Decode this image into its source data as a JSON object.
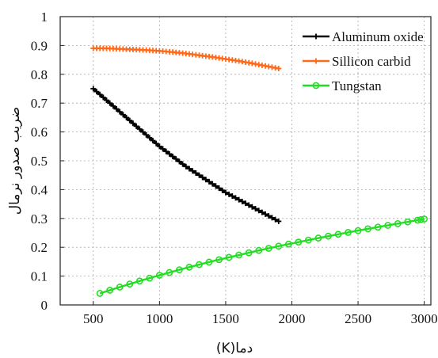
{
  "chart_data": {
    "type": "line",
    "title": "",
    "xlabel": "(K)دما",
    "ylabel": "ضریب صدور نرمال",
    "xlim": [
      250,
      3050
    ],
    "ylim": [
      0,
      1
    ],
    "xticks": [
      500,
      1000,
      1500,
      2000,
      2500,
      3000
    ],
    "xtick_labels": [
      "500",
      "1000",
      "1500",
      "2000",
      "2500",
      "3000"
    ],
    "yticks": [
      0,
      0.1,
      0.2,
      0.3,
      0.4,
      0.5,
      0.6,
      0.7,
      0.8,
      0.9,
      1
    ],
    "ytick_labels": [
      "0",
      "0.1",
      "0.2",
      "0.3",
      "0.4",
      "0.5",
      "0.6",
      "0.7",
      "0.8",
      "0.9",
      "1"
    ],
    "grid": true,
    "legend_position": "top-right",
    "series": [
      {
        "name": "Aluminum oxide",
        "color": "#000000",
        "marker": "plus",
        "x": [
          500,
          600,
          700,
          800,
          900,
          1000,
          1100,
          1200,
          1300,
          1400,
          1500,
          1600,
          1700,
          1800,
          1900
        ],
        "y": [
          0.75,
          0.71,
          0.67,
          0.63,
          0.59,
          0.55,
          0.515,
          0.48,
          0.45,
          0.42,
          0.39,
          0.365,
          0.34,
          0.315,
          0.29
        ]
      },
      {
        "name": "Sillicon carbid",
        "color": "#ff6a1a",
        "marker": "plus",
        "x": [
          500,
          600,
          700,
          800,
          900,
          1000,
          1100,
          1200,
          1300,
          1400,
          1500,
          1600,
          1700,
          1800,
          1900
        ],
        "y": [
          0.89,
          0.89,
          0.888,
          0.886,
          0.884,
          0.881,
          0.877,
          0.872,
          0.866,
          0.86,
          0.853,
          0.846,
          0.838,
          0.829,
          0.82
        ]
      },
      {
        "name": "Tungstan",
        "color": "#22dd22",
        "marker": "circle",
        "x": [
          550,
          700,
          850,
          1000,
          1150,
          1300,
          1450,
          1600,
          1750,
          1900,
          2050,
          2200,
          2350,
          2500,
          2650,
          2800,
          2950,
          3000
        ],
        "y": [
          0.04,
          0.062,
          0.083,
          0.103,
          0.122,
          0.14,
          0.157,
          0.173,
          0.189,
          0.204,
          0.218,
          0.232,
          0.245,
          0.258,
          0.27,
          0.282,
          0.294,
          0.298
        ]
      }
    ]
  }
}
